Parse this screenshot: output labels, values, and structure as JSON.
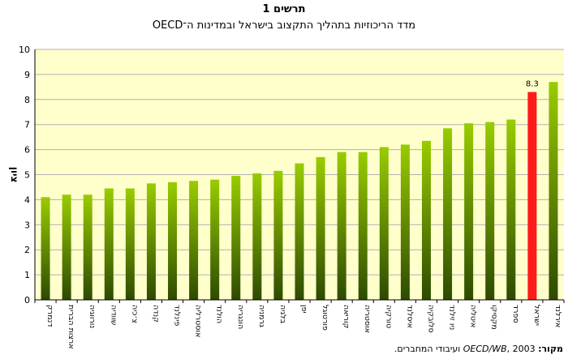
{
  "figure": {
    "label": "תרשים 1",
    "title": "מדד הריכוזיות בתהליך התקצוב בישראל ובמדינות ה־OECD"
  },
  "source": {
    "label": "מקור:",
    "reference": "OECD/WB",
    "year": ", 2003",
    "note": " ועיבודי המחברים."
  },
  "colors": {
    "plot_bg": "#ffffcc",
    "bar_top": "#99cc00",
    "bar_bottom": "#2d4a00",
    "highlight": "#ff1a1a"
  },
  "chart_data": {
    "type": "bar",
    "title": "מדד הריכוזיות בתהליך התקצוב בישראל ובמדינות ה־OECD",
    "ylabel": "ציון",
    "ylim": [
      0,
      10
    ],
    "yticks": [
      0,
      1,
      2,
      3,
      4,
      5,
      6,
      7,
      8,
      9,
      10
    ],
    "grid": true,
    "highlight_category": "ישראל",
    "categories": [
      "דנמרק",
      "ארצות הברית",
      "נורווגיה",
      "שוודיה",
      "צ׳כיה",
      "קנדה",
      "פינלנד",
      "אוסטרליה",
      "הולנד",
      "הונגריה",
      "גרמניה",
      "בלגיה",
      "יפן",
      "פורטוגל",
      "קוריאה",
      "אוסטריה",
      "טורקיה",
      "איסלנד",
      "סלובקיה",
      "ניו זילנד",
      "איטליה",
      "מקסיקו",
      "ספרד",
      "ישראל",
      "אירלנד"
    ],
    "values": [
      4.1,
      4.2,
      4.2,
      4.45,
      4.45,
      4.65,
      4.7,
      4.75,
      4.8,
      4.95,
      5.05,
      5.15,
      5.45,
      5.7,
      5.9,
      5.9,
      6.1,
      6.2,
      6.35,
      6.85,
      7.05,
      7.1,
      7.2,
      8.3,
      8.7
    ],
    "data_labels": [
      {
        "category": "ישראל",
        "text": "8.3"
      }
    ]
  }
}
